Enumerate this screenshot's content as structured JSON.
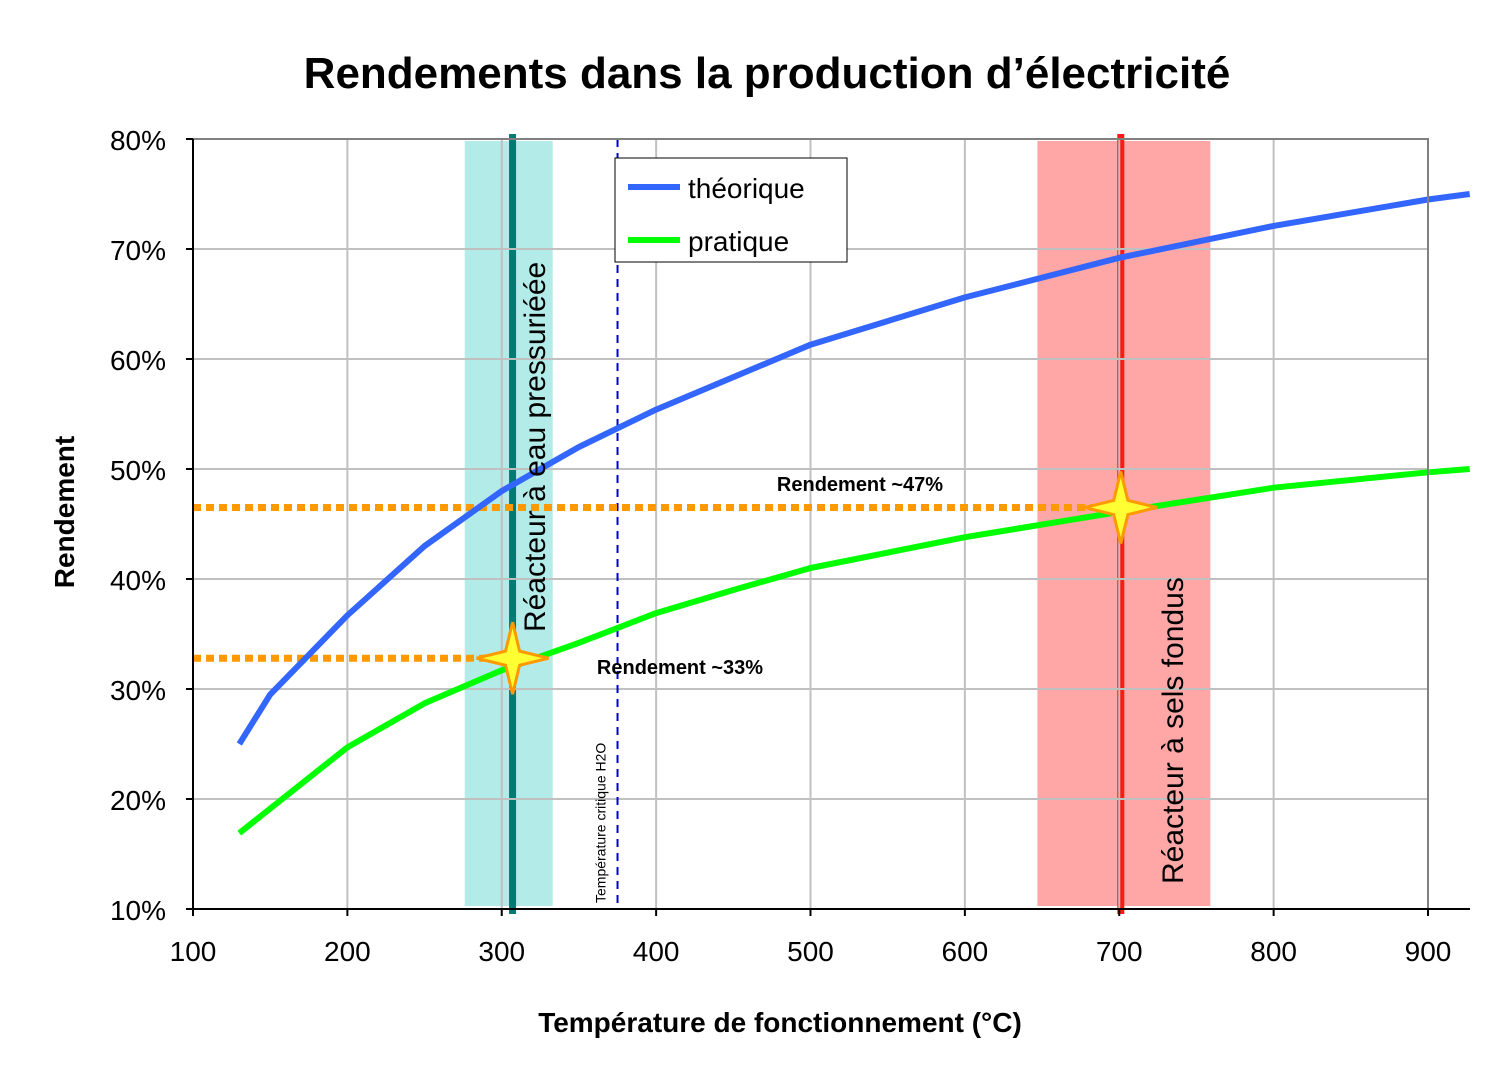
{
  "chart_data": {
    "type": "line",
    "title": "Rendements dans la production d’électricité",
    "xlabel": "Température de fonctionnement (°C)",
    "ylabel": "Rendement",
    "xlim": [
      100,
      927
    ],
    "ylim": [
      10,
      80
    ],
    "x_ticks": [
      100,
      200,
      300,
      400,
      500,
      600,
      700,
      800,
      900
    ],
    "y_ticks": [
      "10%",
      "20%",
      "30%",
      "40%",
      "50%",
      "60%",
      "70%",
      "80%"
    ],
    "y_tick_values": [
      10,
      20,
      30,
      40,
      50,
      60,
      70,
      80
    ],
    "grid": true,
    "legend_placement": "top-center",
    "series": [
      {
        "name": "théorique",
        "color": "#3366ff",
        "x": [
          130,
          150,
          200,
          250,
          300,
          350,
          400,
          500,
          600,
          700,
          800,
          900,
          927
        ],
        "y": [
          25,
          29.5,
          36.7,
          43,
          48,
          52,
          55.4,
          61.3,
          65.6,
          69.2,
          72.1,
          74.5,
          75
        ]
      },
      {
        "name": "pratique",
        "color": "#00ff00",
        "x": [
          130,
          200,
          250,
          300,
          350,
          400,
          450,
          500,
          600,
          700,
          800,
          900,
          927
        ],
        "y": [
          16.9,
          24.7,
          28.7,
          31.7,
          34.2,
          36.9,
          39,
          41,
          43.8,
          46.1,
          48.3,
          49.7,
          50
        ]
      }
    ],
    "bands": [
      {
        "label": "Réacteur à eau pressuriéée",
        "x_range": [
          276,
          333
        ],
        "line_x": 307,
        "fill": "#b3ebe9",
        "line_color": "#007a73"
      },
      {
        "label": "Réacteur à sels fondus",
        "x_range": [
          647,
          759
        ],
        "line_x": 701,
        "fill": "#ffa6a6",
        "line_color": "#ff1a1a"
      }
    ],
    "reference_line": {
      "label": "Température critique H2O",
      "x": 375,
      "color": "#0000cc"
    },
    "annotations": [
      {
        "label": "Rendement ~47%",
        "y": 46.5,
        "x": 701,
        "color": "#ff9900"
      },
      {
        "label": "Rendement ~33%",
        "y": 32.8,
        "x": 307,
        "color": "#ff9900"
      }
    ]
  }
}
